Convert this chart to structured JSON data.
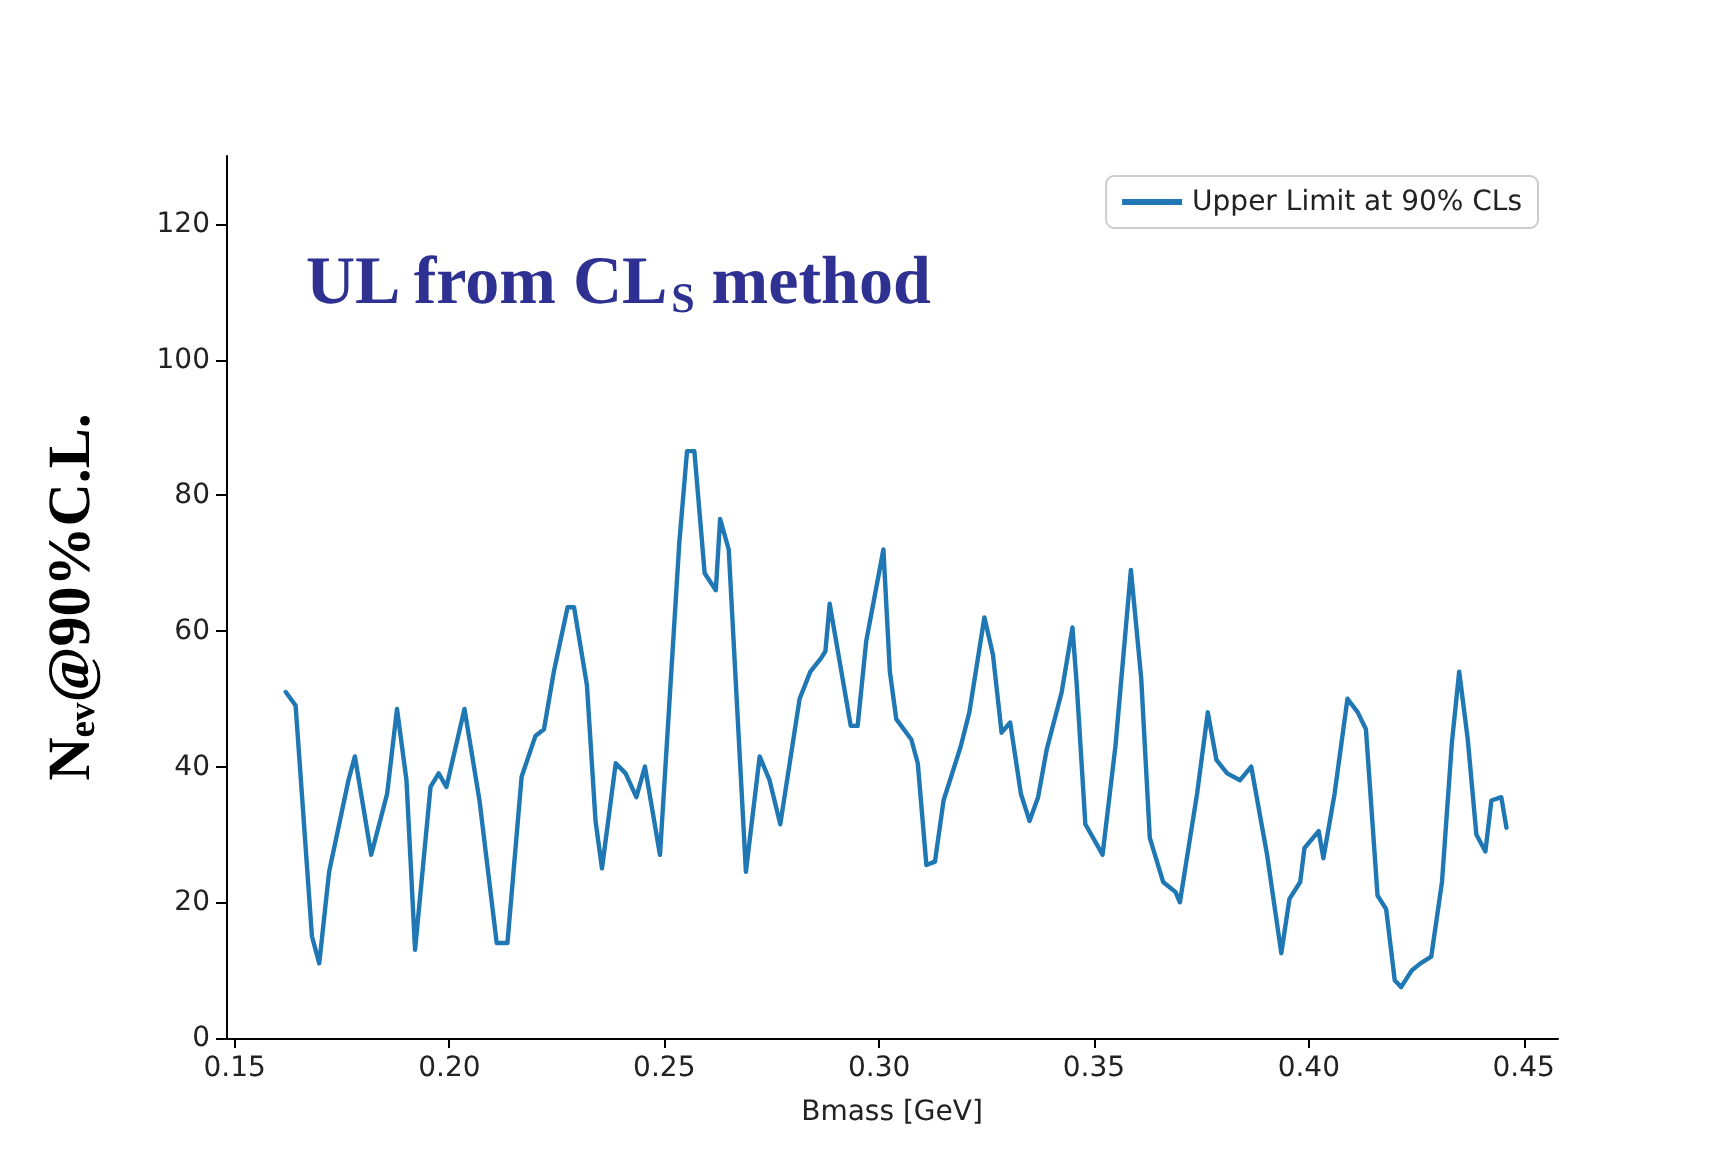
{
  "chart_data": {
    "type": "line",
    "title": "UL from CL$_{S}$ method",
    "xlabel": "Bmass [GeV]",
    "ylabel": "N$_{ev}$@90%C.L.",
    "xlim": [
      0.148,
      0.458
    ],
    "xticks": [
      0.15,
      {
        "value": 0.2,
        "label": "0.20"
      },
      0.25,
      {
        "value": 0.3,
        "label": "0.30"
      },
      0.35,
      {
        "value": 0.4,
        "label": "0.40"
      },
      0.45
    ],
    "ylim": [
      0,
      130
    ],
    "yticks": [
      0,
      20,
      40,
      60,
      80,
      100,
      120
    ],
    "grid": false,
    "legend": "top right",
    "marker": "none",
    "line_style": "solid",
    "series": [
      {
        "name": "Upper Limit at 90% CLs",
        "color": "#1f77b4",
        "x": [
          0.1619,
          0.1642,
          0.168,
          0.1697,
          0.172,
          0.1765,
          0.178,
          0.1818,
          0.1855,
          0.1878,
          0.19,
          0.192,
          0.1956,
          0.1975,
          0.1993,
          0.2035,
          0.207,
          0.211,
          0.2135,
          0.2168,
          0.22,
          0.222,
          0.2243,
          0.2275,
          0.229,
          0.232,
          0.234,
          0.2355,
          0.2387,
          0.241,
          0.2435,
          0.2455,
          0.249,
          0.2535,
          0.2553,
          0.257,
          0.2594,
          0.262,
          0.263,
          0.265,
          0.269,
          0.2722,
          0.2745,
          0.277,
          0.2815,
          0.284,
          0.2865,
          0.2875,
          0.2885,
          0.2934,
          0.295,
          0.297,
          0.301,
          0.3025,
          0.304,
          0.3075,
          0.309,
          0.311,
          0.313,
          0.315,
          0.318,
          0.319,
          0.321,
          0.3245,
          0.3265,
          0.3285,
          0.3305,
          0.333,
          0.335,
          0.337,
          0.339,
          0.3425,
          0.345,
          0.346,
          0.348,
          0.3507,
          0.352,
          0.355,
          0.3586,
          0.361,
          0.363,
          0.3661,
          0.369,
          0.37,
          0.374,
          0.3765,
          0.3785,
          0.381,
          0.384,
          0.3866,
          0.3903,
          0.3936,
          0.3955,
          0.398,
          0.399,
          0.4023,
          0.4034,
          0.406,
          0.409,
          0.4114,
          0.4133,
          0.416,
          0.418,
          0.42,
          0.4215,
          0.424,
          0.426,
          0.4285,
          0.431,
          0.4333,
          0.435,
          0.437,
          0.439,
          0.4411,
          0.4425,
          0.4448,
          0.446
        ],
        "values": [
          51,
          49,
          15,
          11,
          24.5,
          38,
          41.5,
          27,
          36,
          48.5,
          38,
          13,
          37,
          39,
          37,
          48.5,
          35,
          14,
          14,
          38.5,
          44.5,
          45.5,
          54,
          63.5,
          63.5,
          52,
          32,
          25,
          40.5,
          39,
          35.5,
          40,
          27,
          73,
          86.5,
          86.5,
          68.5,
          66,
          76.5,
          72,
          24.5,
          41.5,
          38,
          31.5,
          50,
          54,
          56,
          57,
          64,
          46,
          46,
          58.5,
          72,
          54,
          47,
          44,
          40.5,
          25.5,
          26,
          35,
          41,
          43,
          48,
          62,
          56.5,
          45,
          46.5,
          36,
          32,
          35.5,
          42.5,
          51,
          60.5,
          52,
          31.5,
          28.5,
          27,
          43,
          69,
          53,
          29.5,
          23,
          21.5,
          20,
          36,
          48,
          41,
          39,
          38,
          40,
          27,
          12.5,
          20.5,
          23,
          28,
          30.5,
          26.5,
          36,
          50,
          48,
          45.5,
          21,
          19,
          8.5,
          7.5,
          10,
          11,
          12,
          23,
          43.5,
          54,
          44,
          30,
          27.5,
          35,
          35.5,
          31
        ]
      }
    ]
  }
}
